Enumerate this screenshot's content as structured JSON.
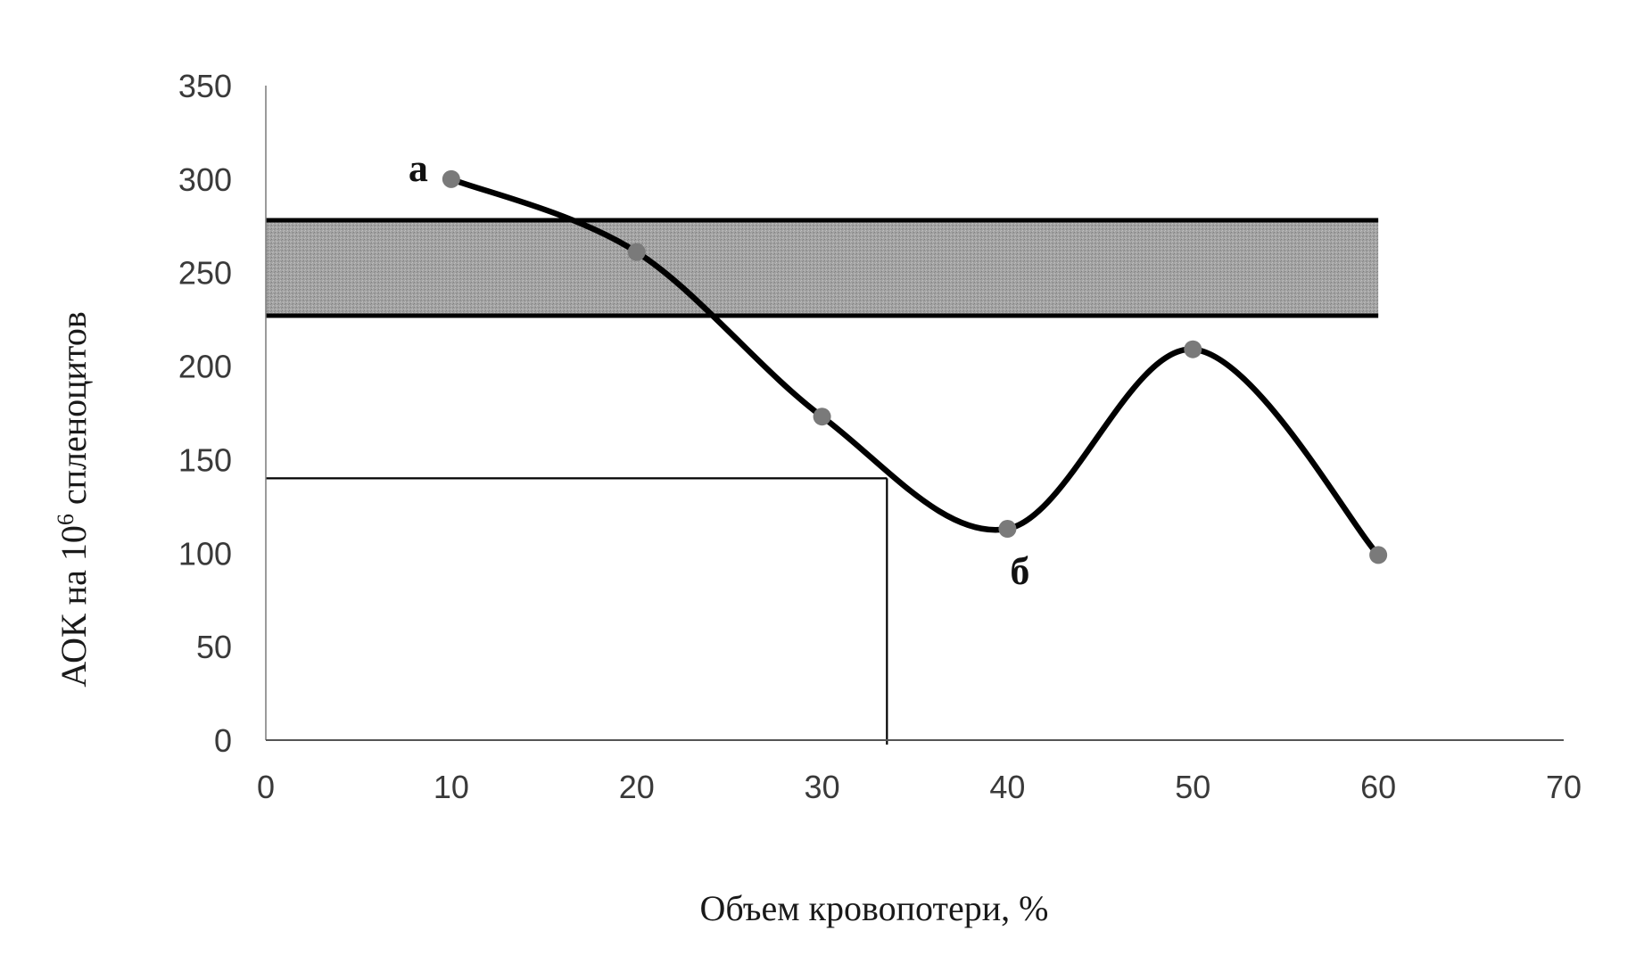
{
  "chart_data": {
    "type": "line",
    "xlabel": "Объем кровопотери, %",
    "ylabel": {
      "before_sup": "АОК на 10",
      "sup": "6",
      "after_sup": " спленоцитов"
    },
    "xlim": [
      0,
      70
    ],
    "ylim": [
      0,
      350
    ],
    "x_ticks": [
      0,
      10,
      20,
      30,
      40,
      50,
      60,
      70
    ],
    "y_ticks": [
      0,
      50,
      100,
      150,
      200,
      250,
      300,
      350
    ],
    "x_tick_labels": [
      "0",
      "10",
      "20",
      "30",
      "40",
      "50",
      "60",
      "70"
    ],
    "y_tick_labels": [
      "0",
      "50",
      "100",
      "150",
      "200",
      "250",
      "300",
      "350"
    ],
    "grid": false,
    "series": [
      {
        "x": [
          10,
          20,
          30,
          40,
          50,
          60
        ],
        "values": [
          300,
          261,
          173,
          113,
          209,
          99
        ],
        "line_color": "#000000",
        "marker_color": "#7a7a7a",
        "smooth": true
      }
    ],
    "normal_band": {
      "y_from": 227,
      "y_to": 278,
      "x_to": 60,
      "fill_color": "#9a9a9a"
    },
    "reference_lines": {
      "y": 140,
      "x": 33.5
    },
    "annotations": [
      {
        "text": "а",
        "x": 10,
        "y": 300,
        "position": "left"
      },
      {
        "text": "б",
        "x": 40,
        "y": 113,
        "position": "below"
      }
    ]
  }
}
